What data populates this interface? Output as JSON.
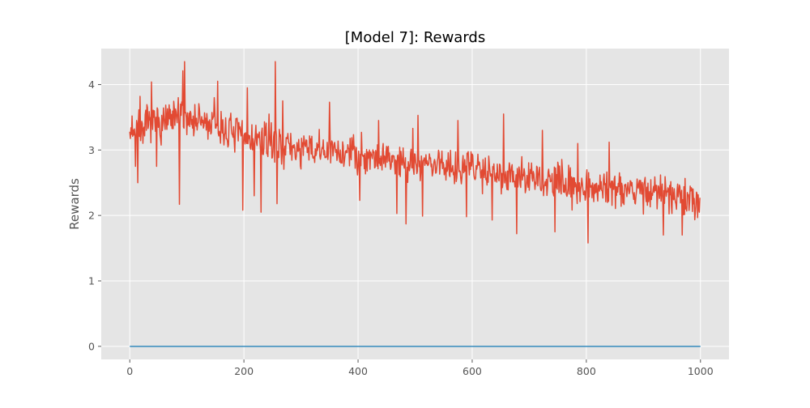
{
  "chart_data": {
    "type": "line",
    "title": "[Model 7]: Rewards",
    "xlabel": "",
    "ylabel": "Rewards",
    "xlim": [
      -50,
      1050
    ],
    "ylim": [
      -0.2,
      4.55
    ],
    "xticks": [
      0,
      200,
      400,
      600,
      800,
      1000
    ],
    "yticks": [
      0,
      1,
      2,
      3,
      4
    ],
    "grid": true,
    "legend": "none",
    "colors": {
      "background": "#e5e5e5",
      "grid": "#ffffff",
      "tick_text": "#555555",
      "title_text": "#000000"
    },
    "series": [
      {
        "color": "#e24a33",
        "trend": [
          [
            0,
            3.3
          ],
          [
            100,
            3.5
          ],
          [
            200,
            3.2
          ],
          [
            300,
            3.0
          ],
          [
            400,
            2.95
          ],
          [
            500,
            2.8
          ],
          [
            600,
            2.75
          ],
          [
            700,
            2.55
          ],
          [
            800,
            2.45
          ],
          [
            900,
            2.4
          ],
          [
            1000,
            2.2
          ]
        ],
        "noise": 0.42,
        "seed": 7,
        "n": 1000,
        "points": [
          [
            0,
            3.28
          ],
          [
            4,
            3.52
          ],
          [
            10,
            2.75
          ],
          [
            12,
            3.45
          ],
          [
            14,
            2.5
          ],
          [
            18,
            3.82
          ],
          [
            25,
            3.35
          ],
          [
            38,
            4.04
          ],
          [
            47,
            2.75
          ],
          [
            85,
            3.8
          ],
          [
            87,
            2.17
          ],
          [
            93,
            4.21
          ],
          [
            96,
            4.35
          ],
          [
            148,
            3.8
          ],
          [
            154,
            4.05
          ],
          [
            198,
            2.08
          ],
          [
            206,
            3.95
          ],
          [
            218,
            2.3
          ],
          [
            230,
            2.05
          ],
          [
            244,
            3.55
          ],
          [
            255,
            4.35
          ],
          [
            258,
            2.18
          ],
          [
            268,
            3.75
          ],
          [
            350,
            3.73
          ],
          [
            403,
            2.23
          ],
          [
            436,
            3.45
          ],
          [
            468,
            2.03
          ],
          [
            484,
            1.87
          ],
          [
            496,
            3.33
          ],
          [
            505,
            3.53
          ],
          [
            513,
            1.99
          ],
          [
            575,
            3.45
          ],
          [
            590,
            1.98
          ],
          [
            635,
            1.93
          ],
          [
            655,
            3.55
          ],
          [
            678,
            1.72
          ],
          [
            723,
            3.3
          ],
          [
            745,
            1.75
          ],
          [
            785,
            3.1
          ],
          [
            803,
            1.58
          ],
          [
            840,
            3.12
          ],
          [
            900,
            2.02
          ],
          [
            935,
            1.7
          ],
          [
            968,
            1.7
          ],
          [
            985,
            2.4
          ],
          [
            998,
            2.05
          ]
        ]
      },
      {
        "color": "#348abd",
        "points": [
          [
            0,
            0
          ],
          [
            1000,
            0
          ]
        ]
      }
    ]
  }
}
